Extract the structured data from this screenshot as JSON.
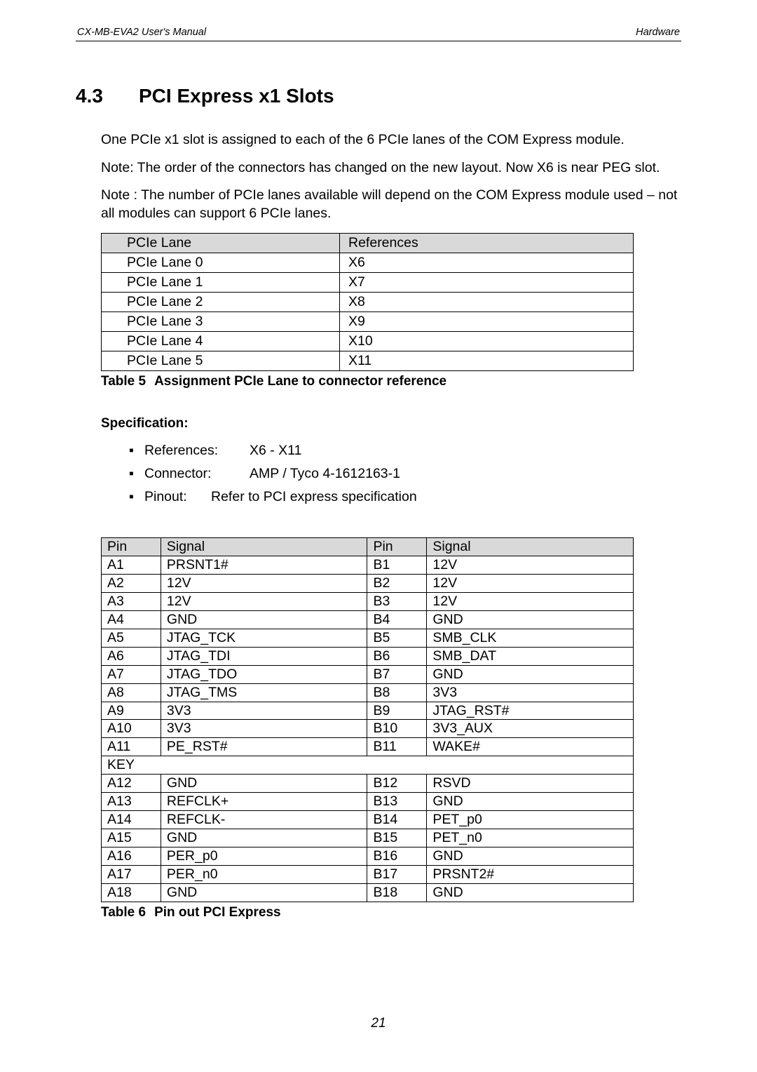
{
  "header": {
    "left": "CX-MB-EVA2  User's Manual",
    "right": "Hardware"
  },
  "section": {
    "number": "4.3",
    "title": "PCI Express x1 Slots"
  },
  "paragraphs": [
    "One PCIe x1 slot is assigned to each of the 6 PCIe lanes of the COM Express module.",
    "Note: The order of the connectors has changed on the new layout. Now X6 is near PEG slot.",
    "Note : The number of PCIe lanes available will depend on the COM Express module used – not all modules can support 6 PCIe lanes."
  ],
  "table5": {
    "headers": [
      "PCIe Lane",
      "References"
    ],
    "rows": [
      [
        "PCIe Lane 0",
        "X6"
      ],
      [
        "PCIe Lane 1",
        "X7"
      ],
      [
        "PCIe Lane 2",
        "X8"
      ],
      [
        "PCIe Lane 3",
        "X9"
      ],
      [
        "PCIe Lane 4",
        "X10"
      ],
      [
        "PCIe Lane 5",
        "X11"
      ]
    ],
    "caption_label": "Table 5",
    "caption_text": "Assignment PCIe Lane to connector reference"
  },
  "spec": {
    "heading": "Specification:",
    "items": [
      {
        "label": "References:",
        "value": "X6 - X11"
      },
      {
        "label": "Connector:",
        "value": "AMP / Tyco 4-1612163-1"
      },
      {
        "label": "Pinout:",
        "value": "Refer to PCI express specification",
        "narrow": true
      }
    ]
  },
  "table6": {
    "headers": [
      "Pin",
      "Signal",
      "Pin",
      "Signal"
    ],
    "rows_top": [
      [
        "A1",
        "PRSNT1#",
        "B1",
        "12V"
      ],
      [
        "A2",
        "12V",
        "B2",
        "12V"
      ],
      [
        "A3",
        "12V",
        "B3",
        "12V"
      ],
      [
        "A4",
        "GND",
        "B4",
        "GND"
      ],
      [
        "A5",
        "JTAG_TCK",
        "B5",
        "SMB_CLK"
      ],
      [
        "A6",
        "JTAG_TDI",
        "B6",
        "SMB_DAT"
      ],
      [
        "A7",
        "JTAG_TDO",
        "B7",
        "GND"
      ],
      [
        "A8",
        "JTAG_TMS",
        "B8",
        "3V3"
      ],
      [
        "A9",
        "3V3",
        "B9",
        "JTAG_RST#"
      ],
      [
        "A10",
        "3V3",
        "B10",
        "3V3_AUX"
      ],
      [
        "A11",
        "PE_RST#",
        "B11",
        "WAKE#"
      ]
    ],
    "key_row": "KEY",
    "rows_bottom": [
      [
        "A12",
        "GND",
        "B12",
        "RSVD"
      ],
      [
        "A13",
        "REFCLK+",
        "B13",
        "GND"
      ],
      [
        "A14",
        "REFCLK-",
        "B14",
        "PET_p0"
      ],
      [
        "A15",
        "GND",
        "B15",
        "PET_n0"
      ],
      [
        "A16",
        "PER_p0",
        "B16",
        "GND"
      ],
      [
        "A17",
        "PER_n0",
        "B17",
        "PRSNT2#"
      ],
      [
        "A18",
        "GND",
        "B18",
        "GND"
      ]
    ],
    "caption_label": "Table 6",
    "caption_text": "Pin out PCI Express"
  },
  "footer": "21",
  "colors": {
    "bg": "#ffffff",
    "text": "#000000",
    "header_bg": "#d9d9d9",
    "border": "#000000"
  }
}
